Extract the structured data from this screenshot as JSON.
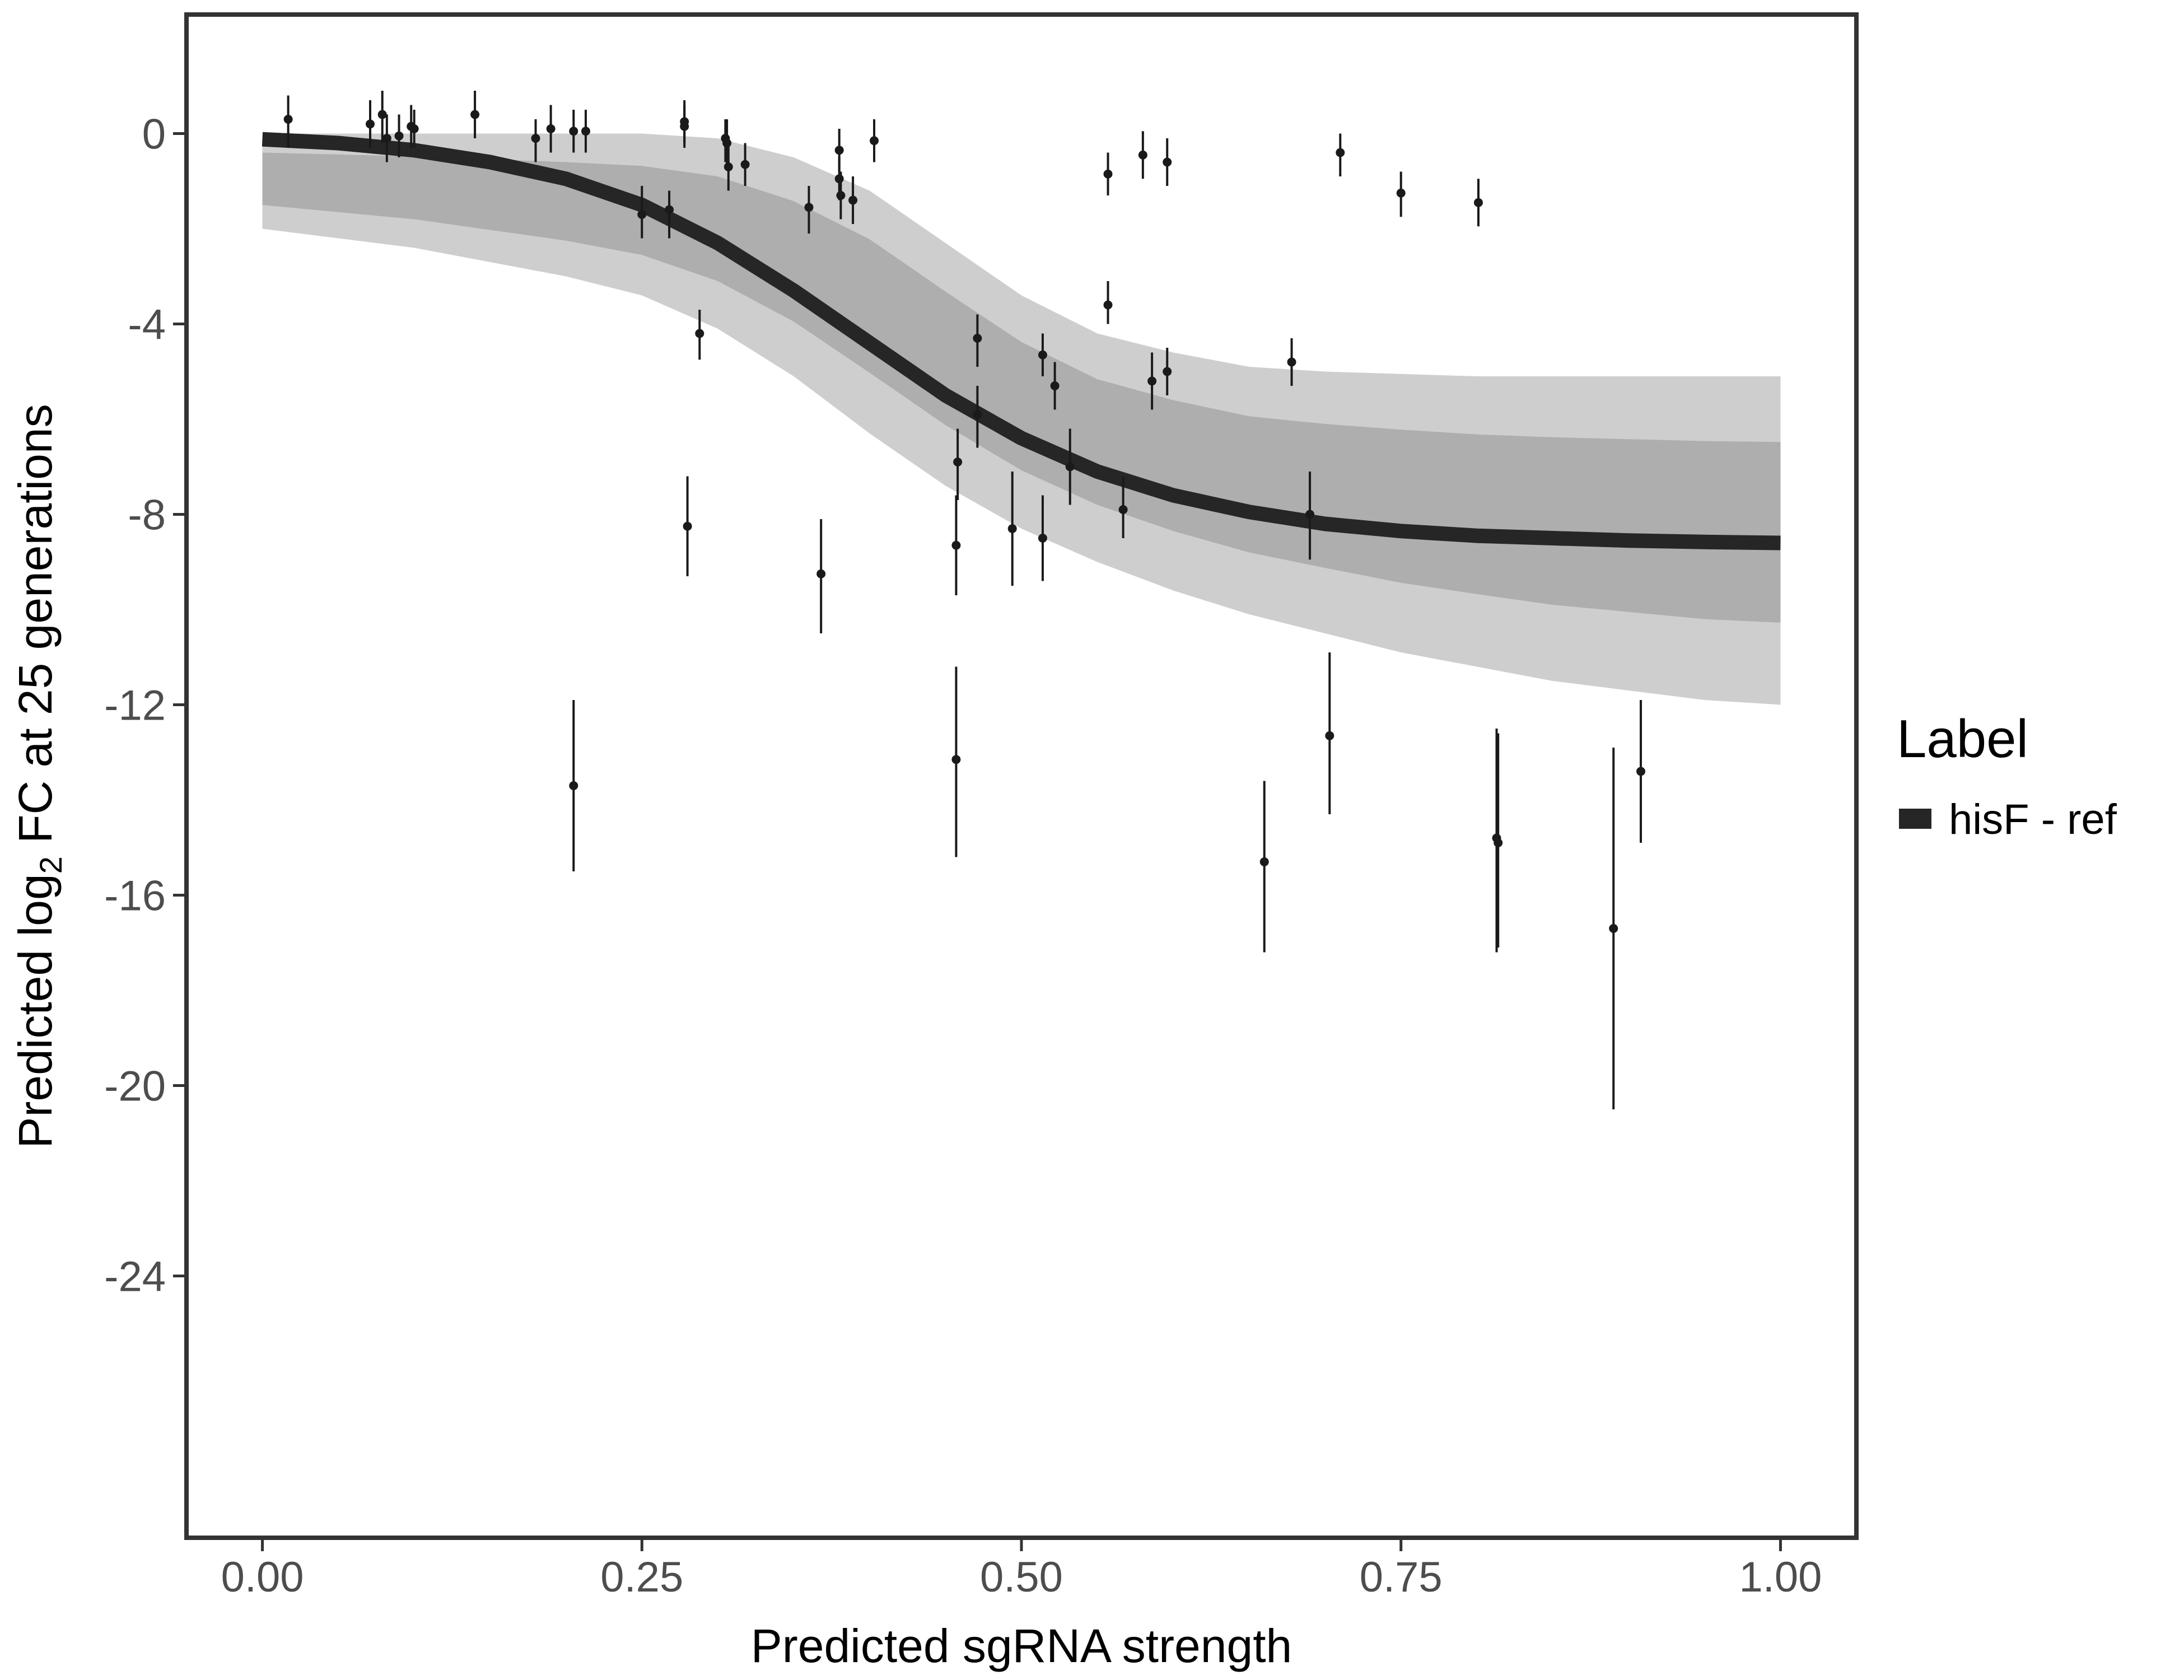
{
  "chart_data": {
    "type": "scatter",
    "xlabel": "Predicted sgRNA strength",
    "ylabel_parts": {
      "before": "Predicted  log",
      "subscript": "2",
      "after": " FC at 25 generations"
    },
    "xlim": [
      -0.05,
      1.05
    ],
    "ylim": [
      -29.5,
      2.5
    ],
    "x_ticks": [
      0.0,
      0.25,
      0.5,
      0.75,
      1.0
    ],
    "x_tick_labels": [
      "0.00",
      "0.25",
      "0.50",
      "0.75",
      "1.00"
    ],
    "y_ticks": [
      0,
      -4,
      -8,
      -12,
      -16,
      -20,
      -24
    ],
    "y_tick_labels": [
      "0",
      "-4",
      "-8",
      "-12",
      "-16",
      "-20",
      "-24"
    ],
    "grid": false,
    "legend": {
      "title": "Label",
      "position": "right",
      "entries": [
        {
          "label": "hisF - ref",
          "color": "#262626"
        }
      ]
    },
    "fit_curve": {
      "name": "hisF - ref",
      "color": "#262626",
      "x": [
        0.0,
        0.05,
        0.1,
        0.15,
        0.2,
        0.25,
        0.3,
        0.35,
        0.4,
        0.45,
        0.5,
        0.55,
        0.6,
        0.65,
        0.7,
        0.75,
        0.8,
        0.85,
        0.9,
        0.95,
        1.0
      ],
      "y": [
        -0.12,
        -0.2,
        -0.35,
        -0.6,
        -0.95,
        -1.5,
        -2.3,
        -3.3,
        -4.4,
        -5.5,
        -6.4,
        -7.1,
        -7.6,
        -7.95,
        -8.2,
        -8.35,
        -8.45,
        -8.5,
        -8.55,
        -8.58,
        -8.6
      ]
    },
    "uncertainty_band": {
      "color": "#a6a6a6",
      "x": [
        0.0,
        0.05,
        0.1,
        0.15,
        0.2,
        0.25,
        0.3,
        0.35,
        0.4,
        0.45,
        0.5,
        0.55,
        0.6,
        0.65,
        0.7,
        0.75,
        0.8,
        0.85,
        0.9,
        0.95,
        1.0
      ],
      "upper": [
        0.0,
        0.0,
        0.0,
        0.0,
        0.0,
        0.0,
        -0.1,
        -0.5,
        -1.2,
        -2.3,
        -3.4,
        -4.2,
        -4.6,
        -4.9,
        -5.0,
        -5.05,
        -5.1,
        -5.1,
        -5.1,
        -5.1,
        -5.1
      ],
      "lower": [
        -2.0,
        -2.2,
        -2.4,
        -2.7,
        -3.0,
        -3.4,
        -4.1,
        -5.1,
        -6.3,
        -7.4,
        -8.3,
        -9.0,
        -9.6,
        -10.1,
        -10.5,
        -10.9,
        -11.2,
        -11.5,
        -11.7,
        -11.9,
        -12.0
      ]
    },
    "points": [
      {
        "x": 0.017,
        "y": 0.3,
        "lo": -0.3,
        "hi": 0.8
      },
      {
        "x": 0.071,
        "y": 0.2,
        "lo": -0.3,
        "hi": 0.7
      },
      {
        "x": 0.079,
        "y": 0.4,
        "lo": -0.2,
        "hi": 0.9
      },
      {
        "x": 0.082,
        "y": -0.1,
        "lo": -0.6,
        "hi": 0.4
      },
      {
        "x": 0.09,
        "y": -0.05,
        "lo": -0.5,
        "hi": 0.4
      },
      {
        "x": 0.098,
        "y": 0.15,
        "lo": -0.3,
        "hi": 0.6
      },
      {
        "x": 0.1,
        "y": 0.1,
        "lo": -0.3,
        "hi": 0.5
      },
      {
        "x": 0.14,
        "y": 0.4,
        "lo": -0.1,
        "hi": 0.9
      },
      {
        "x": 0.18,
        "y": -0.1,
        "lo": -0.6,
        "hi": 0.3
      },
      {
        "x": 0.19,
        "y": 0.1,
        "lo": -0.4,
        "hi": 0.6
      },
      {
        "x": 0.205,
        "y": 0.05,
        "lo": -0.4,
        "hi": 0.5
      },
      {
        "x": 0.213,
        "y": 0.05,
        "lo": -0.4,
        "hi": 0.5
      },
      {
        "x": 0.25,
        "y": -1.7,
        "lo": -2.2,
        "hi": -1.1
      },
      {
        "x": 0.268,
        "y": -1.6,
        "lo": -2.2,
        "hi": -1.2
      },
      {
        "x": 0.278,
        "y": 0.25,
        "lo": -0.2,
        "hi": 0.7
      },
      {
        "x": 0.278,
        "y": 0.15,
        "lo": -0.3,
        "hi": 0.6
      },
      {
        "x": 0.305,
        "y": -0.1,
        "lo": -0.6,
        "hi": 0.3
      },
      {
        "x": 0.306,
        "y": -0.2,
        "lo": -0.7,
        "hi": 0.3
      },
      {
        "x": 0.307,
        "y": -0.7,
        "lo": -1.2,
        "hi": -0.2
      },
      {
        "x": 0.318,
        "y": -0.65,
        "lo": -1.1,
        "hi": -0.2
      },
      {
        "x": 0.36,
        "y": -1.55,
        "lo": -2.1,
        "hi": -1.1
      },
      {
        "x": 0.38,
        "y": -0.35,
        "lo": -0.8,
        "hi": 0.1
      },
      {
        "x": 0.38,
        "y": -0.95,
        "lo": -1.4,
        "hi": -0.5
      },
      {
        "x": 0.381,
        "y": -1.3,
        "lo": -1.8,
        "hi": -0.8
      },
      {
        "x": 0.389,
        "y": -1.4,
        "lo": -1.9,
        "hi": -0.9
      },
      {
        "x": 0.403,
        "y": -0.15,
        "lo": -0.6,
        "hi": 0.3
      },
      {
        "x": 0.288,
        "y": -4.2,
        "lo": -4.75,
        "hi": -3.7
      },
      {
        "x": 0.28,
        "y": -8.25,
        "lo": -9.3,
        "hi": -7.2
      },
      {
        "x": 0.205,
        "y": -13.7,
        "lo": -15.5,
        "hi": -11.9
      },
      {
        "x": 0.368,
        "y": -9.25,
        "lo": -10.5,
        "hi": -8.1
      },
      {
        "x": 0.457,
        "y": -8.65,
        "lo": -9.7,
        "hi": -7.6
      },
      {
        "x": 0.458,
        "y": -6.9,
        "lo": -7.7,
        "hi": -6.2
      },
      {
        "x": 0.457,
        "y": -13.15,
        "lo": -15.2,
        "hi": -11.2
      },
      {
        "x": 0.471,
        "y": -4.3,
        "lo": -4.9,
        "hi": -3.8
      },
      {
        "x": 0.471,
        "y": -5.9,
        "lo": -6.6,
        "hi": -5.3
      },
      {
        "x": 0.494,
        "y": -8.3,
        "lo": -9.5,
        "hi": -7.1
      },
      {
        "x": 0.514,
        "y": -4.65,
        "lo": -5.1,
        "hi": -4.2
      },
      {
        "x": 0.514,
        "y": -8.5,
        "lo": -9.4,
        "hi": -7.6
      },
      {
        "x": 0.522,
        "y": -5.3,
        "lo": -5.8,
        "hi": -4.8
      },
      {
        "x": 0.532,
        "y": -7.0,
        "lo": -7.8,
        "hi": -6.2
      },
      {
        "x": 0.557,
        "y": -0.85,
        "lo": -1.3,
        "hi": -0.4
      },
      {
        "x": 0.557,
        "y": -3.6,
        "lo": -4.0,
        "hi": -3.1
      },
      {
        "x": 0.567,
        "y": -7.9,
        "lo": -8.5,
        "hi": -7.2
      },
      {
        "x": 0.58,
        "y": -0.45,
        "lo": -0.95,
        "hi": 0.05
      },
      {
        "x": 0.586,
        "y": -5.2,
        "lo": -5.8,
        "hi": -4.6
      },
      {
        "x": 0.596,
        "y": -0.6,
        "lo": -1.1,
        "hi": -0.1
      },
      {
        "x": 0.596,
        "y": -5.0,
        "lo": -5.5,
        "hi": -4.5
      },
      {
        "x": 0.66,
        "y": -15.3,
        "lo": -17.2,
        "hi": -13.6
      },
      {
        "x": 0.678,
        "y": -4.8,
        "lo": -5.3,
        "hi": -4.3
      },
      {
        "x": 0.69,
        "y": -8.0,
        "lo": -8.95,
        "hi": -7.1
      },
      {
        "x": 0.703,
        "y": -12.65,
        "lo": -14.3,
        "hi": -10.9
      },
      {
        "x": 0.71,
        "y": -0.4,
        "lo": -0.9,
        "hi": 0.0
      },
      {
        "x": 0.75,
        "y": -1.25,
        "lo": -1.75,
        "hi": -0.8
      },
      {
        "x": 0.801,
        "y": -1.45,
        "lo": -1.95,
        "hi": -0.95
      },
      {
        "x": 0.813,
        "y": -14.8,
        "lo": -17.2,
        "hi": -12.5
      },
      {
        "x": 0.814,
        "y": -14.9,
        "lo": -17.1,
        "hi": -12.6
      },
      {
        "x": 0.89,
        "y": -16.7,
        "lo": -20.5,
        "hi": -12.9
      },
      {
        "x": 0.908,
        "y": -13.4,
        "lo": -14.9,
        "hi": -11.9
      }
    ]
  }
}
